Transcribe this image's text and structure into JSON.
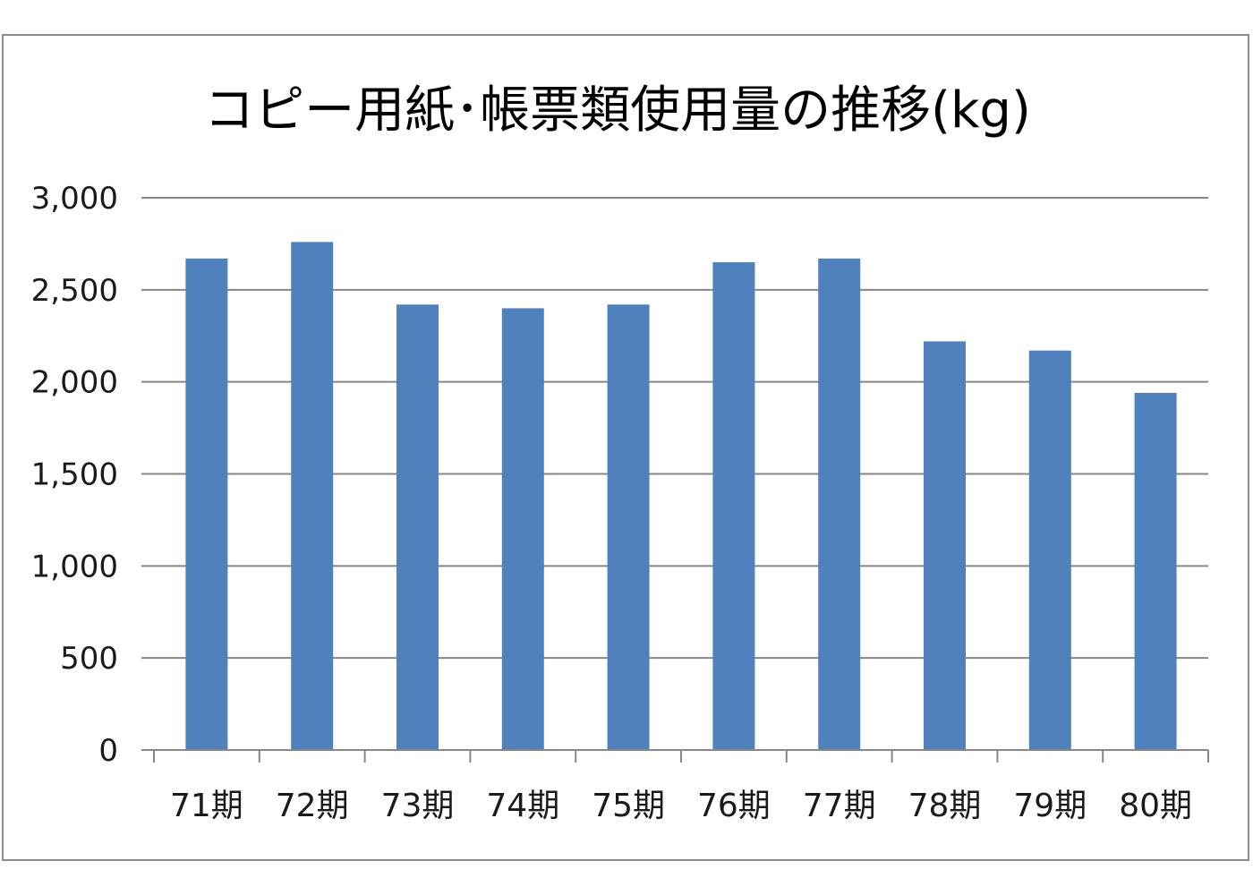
{
  "chart_data": {
    "type": "bar",
    "title": "コピー用紙･帳票類使用量の推移(kg)",
    "categories": [
      "71期",
      "72期",
      "73期",
      "74期",
      "75期",
      "76期",
      "77期",
      "78期",
      "79期",
      "80期"
    ],
    "values": [
      2670,
      2760,
      2420,
      2400,
      2420,
      2650,
      2670,
      2220,
      2170,
      1940
    ],
    "xlabel": "",
    "ylabel": "",
    "ylim": [
      0,
      3000
    ],
    "yticks": [
      0,
      500,
      1000,
      1500,
      2000,
      2500,
      3000
    ],
    "ytick_labels": [
      "0",
      "500",
      "1,000",
      "1,500",
      "2,000",
      "2,500",
      "3,000"
    ],
    "grid": true,
    "legend": "none",
    "colors": {
      "bar": "#4f81bd",
      "grid": "#878787",
      "axis": "#878787",
      "frame": "#8c8c8c"
    }
  }
}
